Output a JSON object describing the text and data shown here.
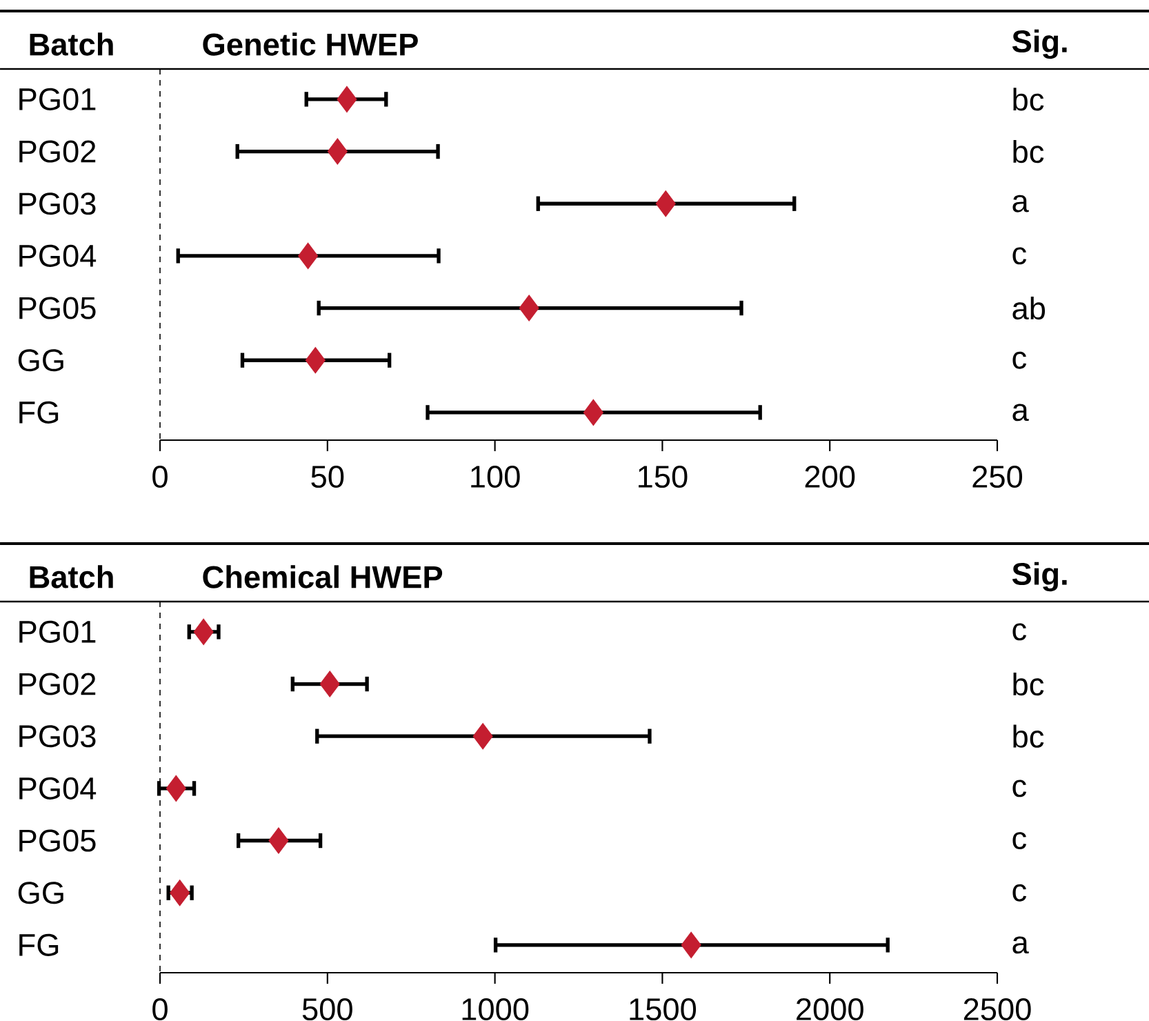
{
  "chart_data": [
    {
      "type": "scatter",
      "orientation": "horizontal",
      "title": "Genetic HWEP",
      "ylabel": "Batch",
      "y2label": "Sig.",
      "categories": [
        "PG01",
        "PG02",
        "PG03",
        "PG04",
        "PG05",
        "GG",
        "FG"
      ],
      "values": [
        55.8,
        53,
        151,
        44.2,
        110.2,
        46.4,
        129.4
      ],
      "errors": [
        [
          43.7,
          67.5
        ],
        [
          23.1,
          83
        ],
        [
          112.9,
          189.4
        ],
        [
          5.4,
          83.2
        ],
        [
          47.4,
          173.6
        ],
        [
          24.6,
          68.5
        ],
        [
          79.9,
          179.2
        ]
      ],
      "color": "#c41e30",
      "marker": "diamond",
      "xlim": [
        0,
        250
      ],
      "xticks": [
        0,
        50,
        100,
        150,
        200,
        250
      ],
      "ref_lines": [
        {
          "axis": "x",
          "value": 0,
          "line_style": "dashed"
        }
      ],
      "annotations": [
        "bc",
        "bc",
        "a",
        "c",
        "ab",
        "c",
        "a"
      ]
    },
    {
      "type": "scatter",
      "orientation": "horizontal",
      "title": "Chemical HWEP",
      "ylabel": "Batch",
      "y2label": "Sig.",
      "categories": [
        "PG01",
        "PG02",
        "PG03",
        "PG04",
        "PG05",
        "GG",
        "FG"
      ],
      "values": [
        130,
        507,
        964,
        48,
        354,
        59,
        1586
      ],
      "errors": [
        [
          87,
          175
        ],
        [
          396,
          618
        ],
        [
          469,
          1462
        ],
        [
          -3,
          102
        ],
        [
          234,
          479
        ],
        [
          25,
          95
        ],
        [
          1002,
          2173
        ]
      ],
      "color": "#c41e30",
      "marker": "diamond",
      "xlim": [
        0,
        2500
      ],
      "xticks": [
        0,
        500,
        1000,
        1500,
        2000,
        2500
      ],
      "ref_lines": [
        {
          "axis": "x",
          "value": 0,
          "line_style": "dashed"
        }
      ],
      "annotations": [
        "c",
        "bc",
        "bc",
        "c",
        "c",
        "c",
        "a"
      ]
    }
  ]
}
